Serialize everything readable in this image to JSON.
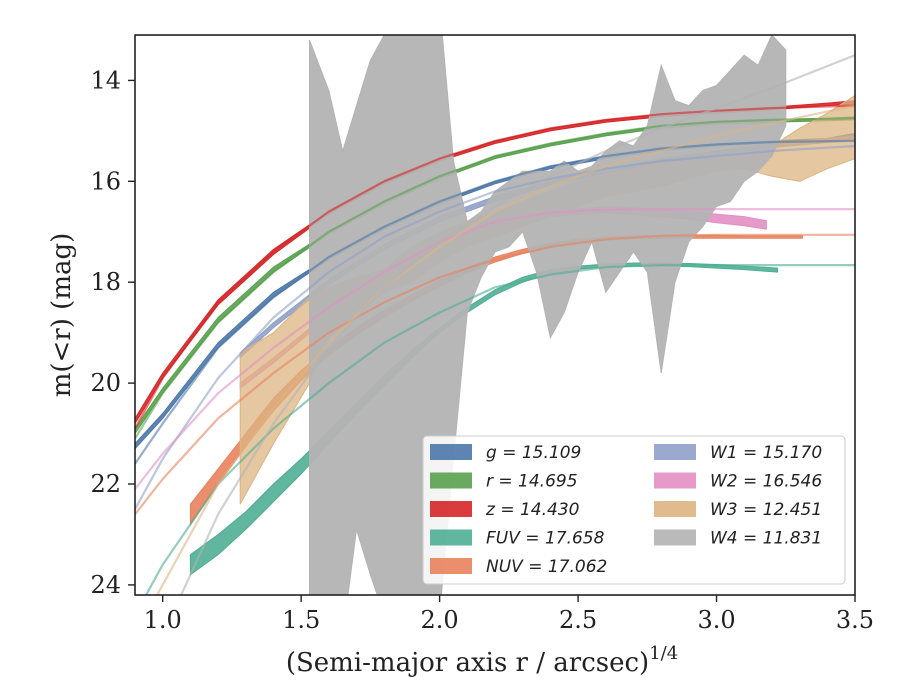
{
  "chart_data": {
    "type": "area",
    "title": "",
    "xlabel": "(Semi-major axis r / arcsec)",
    "xlabel_exponent": "1/4",
    "ylabel": "m(<r) (mag)",
    "xlim": [
      0.9,
      3.5
    ],
    "ylim": [
      24.2,
      13.1
    ],
    "y_inverted": true,
    "grid": false,
    "legend_placement": "lower-right",
    "xticks": [
      "1.0",
      "1.5",
      "2.0",
      "2.5",
      "3.0",
      "3.5"
    ],
    "yticks": [
      "14",
      "16",
      "18",
      "20",
      "22",
      "24"
    ],
    "series": [
      {
        "id": "g",
        "name": "g = 15.109",
        "color": "#4c78a8",
        "model_x": [
          0.9,
          1.0,
          1.2,
          1.4,
          1.6,
          1.8,
          2.0,
          2.2,
          2.4,
          2.6,
          2.8,
          3.0,
          3.2,
          3.5
        ],
        "model_y": [
          21.6,
          20.8,
          19.3,
          18.3,
          17.5,
          16.9,
          16.4,
          16.0,
          15.7,
          15.5,
          15.35,
          15.27,
          15.22,
          15.2
        ],
        "band_x": [
          0.9,
          1.0,
          1.2,
          1.4,
          1.6,
          1.8,
          2.0,
          2.2,
          2.4,
          2.6,
          2.8,
          3.0,
          3.2,
          3.4,
          3.5
        ],
        "band_lo": [
          21.2,
          20.6,
          19.2,
          18.2,
          17.5,
          16.9,
          16.4,
          16.0,
          15.7,
          15.5,
          15.35,
          15.25,
          15.2,
          15.15,
          15.05
        ],
        "band_hi": [
          21.3,
          20.7,
          19.3,
          18.3,
          17.55,
          16.95,
          16.45,
          16.05,
          15.75,
          15.55,
          15.4,
          15.3,
          15.25,
          15.2,
          15.15
        ]
      },
      {
        "id": "r",
        "name": "r = 14.695",
        "color": "#59a14f",
        "model_x": [
          0.9,
          1.0,
          1.2,
          1.4,
          1.6,
          1.8,
          2.0,
          2.2,
          2.4,
          2.6,
          2.8,
          3.0,
          3.2,
          3.5
        ],
        "model_y": [
          21.1,
          20.2,
          18.8,
          17.8,
          17.0,
          16.4,
          15.9,
          15.5,
          15.25,
          15.05,
          14.9,
          14.82,
          14.78,
          14.75
        ],
        "band_x": [
          0.9,
          1.0,
          1.2,
          1.4,
          1.6,
          1.8,
          2.0,
          2.2,
          2.4,
          2.6,
          2.8,
          3.0,
          3.2,
          3.4,
          3.5
        ],
        "band_lo": [
          20.9,
          20.1,
          18.7,
          17.7,
          17.0,
          16.4,
          15.9,
          15.5,
          15.25,
          15.05,
          14.9,
          14.82,
          14.78,
          14.75,
          14.72
        ],
        "band_hi": [
          21.0,
          20.2,
          18.8,
          17.8,
          17.05,
          16.45,
          15.95,
          15.55,
          15.3,
          15.1,
          14.95,
          14.87,
          14.83,
          14.8,
          14.78
        ]
      },
      {
        "id": "z",
        "name": "z = 14.430",
        "color": "#d62728",
        "model_x": [
          0.9,
          1.0,
          1.2,
          1.4,
          1.6,
          1.8,
          2.0,
          2.2,
          2.4,
          2.6,
          2.8,
          3.0,
          3.2,
          3.5
        ],
        "model_y": [
          20.9,
          19.9,
          18.4,
          17.4,
          16.6,
          16.0,
          15.55,
          15.2,
          14.95,
          14.78,
          14.67,
          14.6,
          14.55,
          14.5
        ],
        "band_x": [
          0.9,
          1.0,
          1.2,
          1.4,
          1.6,
          1.8,
          2.0,
          2.2,
          2.4,
          2.6,
          2.8,
          3.0,
          3.2,
          3.4,
          3.5
        ],
        "band_lo": [
          20.7,
          19.8,
          18.35,
          17.35,
          16.6,
          16.0,
          15.55,
          15.2,
          14.95,
          14.78,
          14.67,
          14.6,
          14.53,
          14.45,
          14.4
        ],
        "band_hi": [
          20.8,
          19.9,
          18.45,
          17.45,
          16.65,
          16.05,
          15.6,
          15.25,
          15.0,
          14.83,
          14.72,
          14.65,
          14.58,
          14.5,
          14.47
        ]
      },
      {
        "id": "fuv",
        "name": "FUV = 17.658",
        "color": "#4fae93",
        "model_x": [
          0.9,
          1.0,
          1.2,
          1.4,
          1.6,
          1.8,
          2.0,
          2.2,
          2.4,
          2.6,
          2.8,
          3.0,
          3.2,
          3.5
        ],
        "model_y": [
          24.6,
          23.6,
          22.0,
          20.9,
          20.0,
          19.2,
          18.6,
          18.1,
          17.85,
          17.7,
          17.66,
          17.66,
          17.66,
          17.66
        ],
        "band_x": [
          1.1,
          1.2,
          1.3,
          1.4,
          1.5,
          1.6,
          1.7,
          1.8,
          1.9,
          2.0,
          2.1,
          2.2,
          2.3,
          2.4,
          2.5,
          2.6,
          2.7,
          2.8,
          2.9,
          3.0,
          3.1,
          3.22
        ],
        "band_lo": [
          23.4,
          23.0,
          22.55,
          22.0,
          21.5,
          20.95,
          20.4,
          19.85,
          19.35,
          18.9,
          18.5,
          18.15,
          17.9,
          17.75,
          17.68,
          17.64,
          17.62,
          17.62,
          17.63,
          17.65,
          17.68,
          17.72
        ],
        "band_hi": [
          23.8,
          23.4,
          22.9,
          22.35,
          21.8,
          21.2,
          20.6,
          20.05,
          19.5,
          19.0,
          18.6,
          18.25,
          18.0,
          17.83,
          17.74,
          17.7,
          17.68,
          17.68,
          17.69,
          17.72,
          17.75,
          17.8
        ]
      },
      {
        "id": "nuv",
        "name": "NUV = 17.062",
        "color": "#e8825e",
        "model_x": [
          0.9,
          1.0,
          1.2,
          1.4,
          1.6,
          1.8,
          2.0,
          2.2,
          2.4,
          2.6,
          2.8,
          3.0,
          3.2,
          3.5
        ],
        "model_y": [
          22.6,
          21.9,
          20.7,
          19.8,
          19.0,
          18.4,
          17.9,
          17.55,
          17.3,
          17.15,
          17.08,
          17.06,
          17.06,
          17.06
        ],
        "band_x": [
          1.1,
          1.2,
          1.3,
          1.4,
          1.5,
          1.6,
          1.7,
          1.8,
          1.9,
          2.0,
          2.1,
          2.2,
          2.3,
          2.4,
          2.5,
          2.6,
          2.7,
          2.8,
          2.9,
          3.0,
          3.1,
          3.2,
          3.31
        ],
        "band_lo": [
          22.4,
          21.7,
          21.0,
          20.3,
          19.75,
          19.3,
          18.9,
          18.55,
          18.25,
          17.95,
          17.7,
          17.5,
          17.35,
          17.22,
          17.15,
          17.1,
          17.08,
          17.07,
          17.07,
          17.07,
          17.08,
          17.08,
          17.08
        ],
        "band_hi": [
          22.8,
          22.0,
          21.25,
          20.55,
          19.95,
          19.45,
          19.05,
          18.7,
          18.38,
          18.08,
          17.82,
          17.6,
          17.43,
          17.3,
          17.22,
          17.17,
          17.14,
          17.13,
          17.13,
          17.13,
          17.13,
          17.13,
          17.13
        ]
      },
      {
        "id": "w1",
        "name": "W1 = 15.170",
        "color": "#8fa0c8",
        "model_x": [
          0.9,
          1.0,
          1.2,
          1.4,
          1.6,
          1.8,
          2.0,
          2.2,
          2.4,
          2.6,
          2.8,
          3.0,
          3.2,
          3.5
        ],
        "model_y": [
          22.5,
          21.5,
          19.9,
          18.7,
          17.8,
          17.1,
          16.6,
          16.2,
          15.95,
          15.75,
          15.6,
          15.5,
          15.4,
          15.3
        ],
        "band_x": [
          1.28,
          1.4,
          1.6,
          1.8,
          2.0,
          2.2,
          2.4,
          2.6,
          2.8,
          3.0,
          3.2,
          3.4,
          3.5
        ],
        "band_lo": [
          19.4,
          18.8,
          17.95,
          17.25,
          16.7,
          16.3,
          16.0,
          15.75,
          15.55,
          15.4,
          15.25,
          15.15,
          15.1
        ],
        "band_hi": [
          19.5,
          18.9,
          18.05,
          17.35,
          16.8,
          16.4,
          16.08,
          15.83,
          15.63,
          15.48,
          15.33,
          15.23,
          15.18
        ]
      },
      {
        "id": "w2",
        "name": "W2 = 16.546",
        "color": "#e38fc4",
        "model_x": [
          0.9,
          1.0,
          1.2,
          1.4,
          1.6,
          1.8,
          2.0,
          2.2,
          2.4,
          2.6,
          2.8,
          3.0,
          3.2,
          3.5
        ],
        "model_y": [
          22.1,
          21.4,
          20.2,
          19.3,
          18.5,
          17.8,
          17.2,
          16.8,
          16.62,
          16.56,
          16.55,
          16.55,
          16.55,
          16.55
        ],
        "band_x": [
          1.28,
          1.4,
          1.6,
          1.8,
          2.0,
          2.2,
          2.4,
          2.6,
          2.8,
          2.9,
          3.0,
          3.1,
          3.18
        ],
        "band_lo": [
          20.0,
          19.5,
          18.6,
          17.85,
          17.25,
          16.85,
          16.6,
          16.5,
          16.55,
          16.6,
          16.65,
          16.7,
          16.78
        ],
        "band_hi": [
          20.1,
          19.6,
          18.7,
          17.95,
          17.35,
          16.95,
          16.7,
          16.62,
          16.7,
          16.75,
          16.82,
          16.88,
          16.95
        ]
      },
      {
        "id": "w3",
        "name": "W3 = 12.451",
        "color": "#dcb482",
        "model_x": [
          0.9,
          1.0,
          1.2,
          1.4,
          1.6,
          1.8,
          2.0,
          2.2,
          2.4,
          2.6,
          2.8,
          3.0,
          3.2,
          3.5
        ],
        "model_y": [
          25.0,
          24.0,
          22.0,
          20.5,
          19.2,
          18.1,
          17.3,
          16.6,
          16.1,
          15.7,
          15.4,
          15.1,
          14.85,
          14.5
        ],
        "band_x": [
          1.28,
          1.4,
          1.53,
          1.6,
          1.7,
          1.8,
          1.9,
          2.0,
          2.1,
          2.2,
          2.3,
          2.4,
          2.5,
          2.6,
          2.7,
          2.8,
          2.9,
          3.0,
          3.1,
          3.2,
          3.3,
          3.4,
          3.5
        ],
        "band_lo": [
          19.4,
          19.0,
          18.3,
          18.1,
          17.9,
          17.75,
          17.3,
          17.0,
          16.8,
          16.6,
          16.4,
          16.2,
          16.0,
          15.85,
          15.75,
          15.65,
          15.55,
          15.55,
          15.45,
          15.3,
          14.95,
          14.65,
          14.3
        ],
        "band_hi": [
          22.4,
          21.2,
          20.0,
          19.1,
          18.6,
          18.2,
          18.0,
          17.6,
          17.3,
          17.1,
          16.9,
          16.7,
          16.5,
          16.3,
          16.2,
          16.1,
          15.95,
          15.8,
          15.75,
          15.9,
          16.0,
          15.75,
          15.55
        ]
      },
      {
        "id": "w4",
        "name": "W4 = 11.831",
        "color": "#b3b3b3",
        "model_x": [
          0.9,
          1.0,
          1.2,
          1.4,
          1.6,
          1.8,
          2.0,
          2.2,
          2.4,
          2.6,
          2.8,
          3.0,
          3.2,
          3.5
        ],
        "model_y": [
          26.0,
          25.0,
          22.6,
          20.8,
          19.3,
          18.1,
          17.2,
          16.5,
          15.9,
          15.4,
          14.95,
          14.55,
          14.15,
          13.5
        ],
        "band_x": [
          1.53,
          1.6,
          1.65,
          1.7,
          1.75,
          1.8,
          1.85,
          1.9,
          1.95,
          2.0,
          2.05,
          2.1,
          2.15,
          2.2,
          2.25,
          2.3,
          2.35,
          2.4,
          2.45,
          2.5,
          2.55,
          2.6,
          2.65,
          2.7,
          2.75,
          2.8,
          2.85,
          2.9,
          2.95,
          3.0,
          3.05,
          3.1,
          3.15,
          3.2,
          3.25
        ],
        "band_lo": [
          13.2,
          14.2,
          15.4,
          14.5,
          13.6,
          13.1,
          12.5,
          12.5,
          12.5,
          12.5,
          15.6,
          16.8,
          16.6,
          16.2,
          16.0,
          15.8,
          15.8,
          15.8,
          15.6,
          15.8,
          15.7,
          15.4,
          15.2,
          15.3,
          14.9,
          13.7,
          14.4,
          14.5,
          14.2,
          14.1,
          13.8,
          13.5,
          13.7,
          13.1,
          13.4
        ],
        "band_hi": [
          25.0,
          25.0,
          25.0,
          22.9,
          23.8,
          24.6,
          24.8,
          24.8,
          24.8,
          24.6,
          21.5,
          18.6,
          17.9,
          17.4,
          17.3,
          17.0,
          17.8,
          19.1,
          18.6,
          17.8,
          17.2,
          18.2,
          17.8,
          17.4,
          17.8,
          19.8,
          18.0,
          17.2,
          16.9,
          16.5,
          16.4,
          16.0,
          15.8,
          15.5,
          14.9
        ]
      }
    ]
  }
}
